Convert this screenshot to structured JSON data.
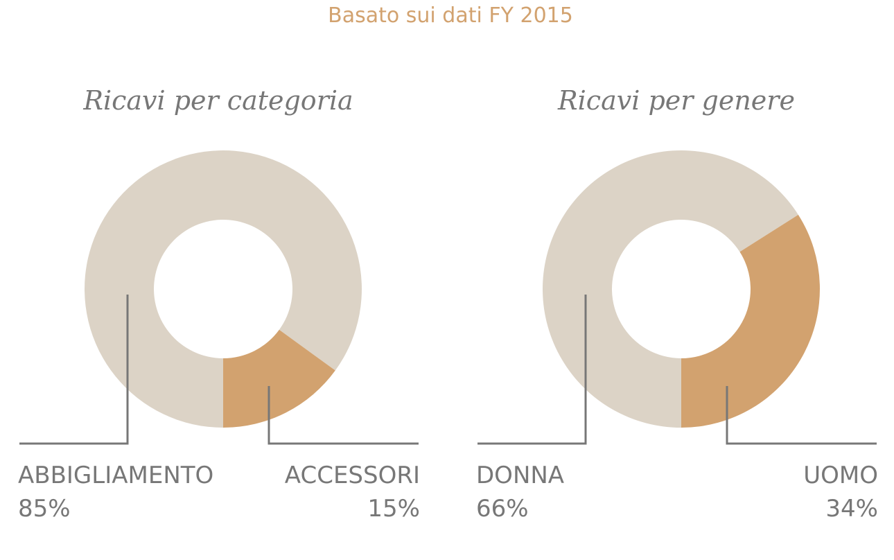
{
  "header": {
    "subtitle": "Basato sui dati FY 2015"
  },
  "chart_data": [
    {
      "type": "pie",
      "title": "Ricavi per categoria",
      "donut": true,
      "categories": [
        "ABBIGLIAMENTO",
        "ACCESSORI"
      ],
      "values": [
        85,
        15
      ],
      "value_labels": [
        "85%",
        "15%"
      ],
      "colors": [
        "#dcd3c6",
        "#d2a26f"
      ]
    },
    {
      "type": "pie",
      "title": "Ricavi per genere",
      "donut": true,
      "categories": [
        "DONNA",
        "UOMO"
      ],
      "values": [
        66,
        34
      ],
      "value_labels": [
        "66%",
        "34%"
      ],
      "colors": [
        "#dcd3c6",
        "#d2a26f"
      ]
    }
  ]
}
